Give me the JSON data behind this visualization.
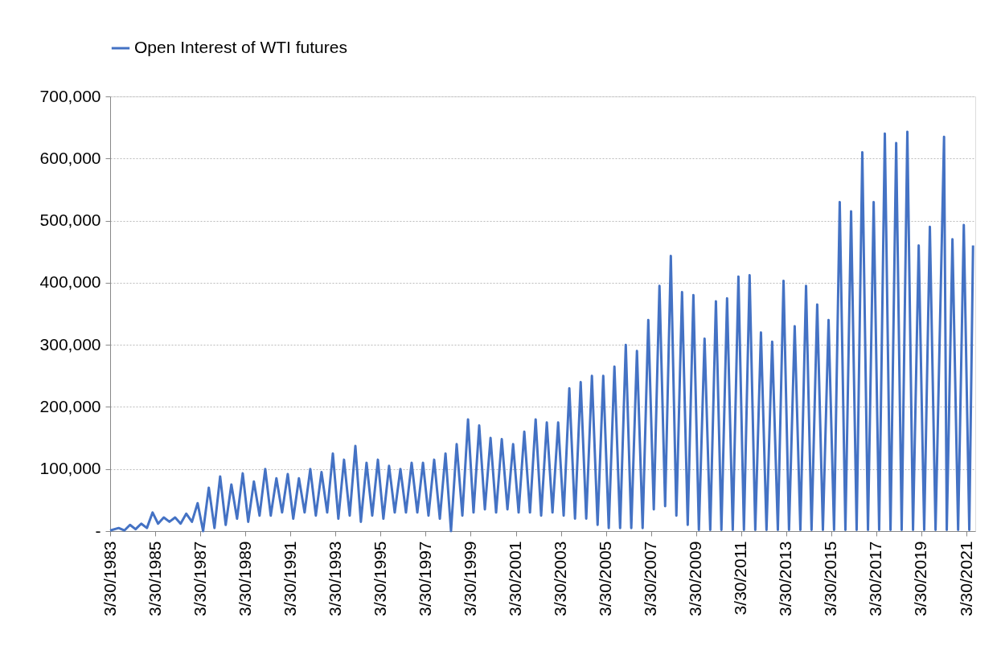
{
  "chart_data": {
    "type": "line",
    "legend": "top",
    "grid": "y",
    "line_style": "solid",
    "marker": "none",
    "ylim": [
      0,
      700000
    ],
    "yticks": [
      {
        "value": 0,
        "label": "-"
      },
      {
        "value": 100000,
        "label": "100,000"
      },
      {
        "value": 200000,
        "label": "200,000"
      },
      {
        "value": 300000,
        "label": "300,000"
      },
      {
        "value": 400000,
        "label": "400,000"
      },
      {
        "value": 500000,
        "label": "500,000"
      },
      {
        "value": 600000,
        "label": "600,000"
      },
      {
        "value": 700000,
        "label": "700,000"
      }
    ],
    "xlim": [
      "1983-03-30",
      "2021-08-20"
    ],
    "xticks": [
      {
        "value": "1983-03-30",
        "label": "3/30/1983"
      },
      {
        "value": "1985-03-30",
        "label": "3/30/1985"
      },
      {
        "value": "1987-03-30",
        "label": "3/30/1987"
      },
      {
        "value": "1989-03-30",
        "label": "3/30/1989"
      },
      {
        "value": "1991-03-30",
        "label": "3/30/1991"
      },
      {
        "value": "1993-03-30",
        "label": "3/30/1993"
      },
      {
        "value": "1995-03-30",
        "label": "3/30/1995"
      },
      {
        "value": "1997-03-30",
        "label": "3/30/1997"
      },
      {
        "value": "1999-03-30",
        "label": "3/30/1999"
      },
      {
        "value": "2001-03-30",
        "label": "3/30/2001"
      },
      {
        "value": "2003-03-30",
        "label": "3/30/2003"
      },
      {
        "value": "2005-03-30",
        "label": "3/30/2005"
      },
      {
        "value": "2007-03-30",
        "label": "3/30/2007"
      },
      {
        "value": "2009-03-30",
        "label": "3/30/2009"
      },
      {
        "value": "2011-03-30",
        "label": "3/30/2011"
      },
      {
        "value": "2013-03-30",
        "label": "3/30/2013"
      },
      {
        "value": "2015-03-30",
        "label": "3/30/2015"
      },
      {
        "value": "2017-03-30",
        "label": "3/30/2017"
      },
      {
        "value": "2019-03-30",
        "label": "3/30/2019"
      },
      {
        "value": "2021-03-30",
        "label": "3/30/2021"
      }
    ],
    "x": [
      "1983-03-30",
      "1983-08-15",
      "1983-11-15",
      "1984-02-15",
      "1984-05-15",
      "1984-08-15",
      "1984-11-15",
      "1985-02-15",
      "1985-05-15",
      "1985-08-15",
      "1985-11-15",
      "1986-02-15",
      "1986-05-15",
      "1986-08-15",
      "1986-11-15",
      "1987-02-15",
      "1987-05-15",
      "1987-08-15",
      "1987-11-15",
      "1988-02-15",
      "1988-05-15",
      "1988-08-15",
      "1988-11-15",
      "1989-02-15",
      "1989-05-15",
      "1989-08-15",
      "1989-11-15",
      "1990-02-15",
      "1990-05-15",
      "1990-08-15",
      "1990-11-15",
      "1991-02-15",
      "1991-05-15",
      "1991-08-15",
      "1991-11-15",
      "1992-02-15",
      "1992-05-15",
      "1992-08-15",
      "1992-11-15",
      "1993-02-15",
      "1993-05-15",
      "1993-08-15",
      "1993-11-15",
      "1994-02-15",
      "1994-05-15",
      "1994-08-15",
      "1994-11-15",
      "1995-02-15",
      "1995-05-15",
      "1995-08-15",
      "1995-11-15",
      "1996-02-15",
      "1996-05-15",
      "1996-08-15",
      "1996-11-15",
      "1997-02-15",
      "1997-05-15",
      "1997-08-15",
      "1997-11-15",
      "1998-02-15",
      "1998-05-15",
      "1998-08-15",
      "1998-11-15",
      "1999-02-15",
      "1999-05-15",
      "1999-08-15",
      "1999-11-15",
      "2000-02-15",
      "2000-05-15",
      "2000-08-15",
      "2000-11-15",
      "2001-02-15",
      "2001-05-15",
      "2001-08-15",
      "2001-11-15",
      "2002-02-15",
      "2002-05-15",
      "2002-08-15",
      "2002-11-15",
      "2003-02-15",
      "2003-05-15",
      "2003-08-15",
      "2003-11-15",
      "2004-02-15",
      "2004-05-15",
      "2004-08-15",
      "2004-11-15",
      "2005-02-15",
      "2005-05-15",
      "2005-08-15",
      "2005-11-15",
      "2006-02-15",
      "2006-05-15",
      "2006-08-15",
      "2006-11-15",
      "2007-02-15",
      "2007-05-15",
      "2007-08-15",
      "2007-11-15",
      "2008-02-15",
      "2008-05-15",
      "2008-08-15",
      "2008-11-15",
      "2009-02-15",
      "2009-05-15",
      "2009-08-15",
      "2009-11-15",
      "2010-02-15",
      "2010-05-15",
      "2010-08-15",
      "2010-11-15",
      "2011-02-15",
      "2011-05-15",
      "2011-08-15",
      "2011-11-15",
      "2012-02-15",
      "2012-05-15",
      "2012-08-15",
      "2012-11-15",
      "2013-02-15",
      "2013-05-15",
      "2013-08-15",
      "2013-11-15",
      "2014-02-15",
      "2014-05-15",
      "2014-08-15",
      "2014-11-15",
      "2015-02-15",
      "2015-05-15",
      "2015-08-15",
      "2015-11-15",
      "2016-02-15",
      "2016-05-15",
      "2016-08-15",
      "2016-11-15",
      "2017-02-15",
      "2017-05-15",
      "2017-08-15",
      "2017-11-15",
      "2018-02-15",
      "2018-05-15",
      "2018-08-15",
      "2018-11-15",
      "2019-02-15",
      "2019-05-15",
      "2019-08-15",
      "2019-11-15",
      "2020-04-01",
      "2020-05-15",
      "2020-08-15",
      "2020-11-15",
      "2021-02-15",
      "2021-05-15",
      "2021-07-15"
    ],
    "series": [
      {
        "name": "Open Interest of WTI futures",
        "color": "#4472c4",
        "values": [
          1000,
          5000,
          1000,
          10000,
          3000,
          12000,
          5000,
          30000,
          12000,
          22000,
          15000,
          22000,
          12000,
          28000,
          15000,
          45000,
          0,
          70000,
          5000,
          88000,
          10000,
          75000,
          20000,
          93000,
          15000,
          80000,
          25000,
          100000,
          25000,
          85000,
          30000,
          92000,
          20000,
          85000,
          30000,
          100000,
          25000,
          95000,
          30000,
          125000,
          20000,
          115000,
          25000,
          137000,
          15000,
          110000,
          25000,
          115000,
          20000,
          105000,
          30000,
          100000,
          30000,
          110000,
          30000,
          110000,
          25000,
          115000,
          20000,
          125000,
          0,
          140000,
          25000,
          180000,
          30000,
          170000,
          35000,
          150000,
          30000,
          148000,
          35000,
          140000,
          30000,
          160000,
          30000,
          180000,
          25000,
          175000,
          30000,
          175000,
          25000,
          230000,
          20000,
          240000,
          20000,
          250000,
          10000,
          250000,
          5000,
          265000,
          5000,
          300000,
          5000,
          290000,
          5000,
          340000,
          35000,
          395000,
          40000,
          443000,
          25000,
          385000,
          10000,
          380000,
          2000,
          310000,
          2000,
          370000,
          2000,
          375000,
          2000,
          410000,
          2000,
          412000,
          2000,
          320000,
          2000,
          305000,
          2000,
          403000,
          2000,
          330000,
          2000,
          395000,
          2000,
          365000,
          2000,
          340000,
          2000,
          530000,
          2000,
          515000,
          2000,
          610000,
          2000,
          530000,
          2000,
          640000,
          2000,
          625000,
          2000,
          643000,
          2000,
          460000,
          2000,
          490000,
          2000,
          635000,
          2000,
          470000,
          2000,
          493000,
          2000,
          460000
        ]
      }
    ]
  }
}
